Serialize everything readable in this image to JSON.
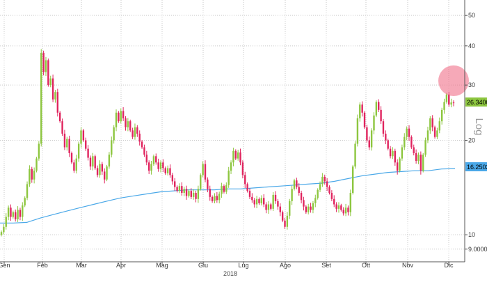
{
  "chart_data": {
    "type": "candlestick",
    "scale": "log",
    "ylim": [
      8.2,
      56
    ],
    "y_ticks": [
      {
        "value": 50,
        "label": "50"
      },
      {
        "value": 40,
        "label": "40"
      },
      {
        "value": 30,
        "label": "30"
      },
      {
        "value": 20,
        "label": "20"
      },
      {
        "value": 10,
        "label": "10"
      },
      {
        "value": 9,
        "label": "9.0000"
      }
    ],
    "x_ticks": [
      "Gen",
      "Feb",
      "Mar",
      "Apr",
      "Mag",
      "Giu",
      "Lug",
      "Ago",
      "Set",
      "Ott",
      "Nov",
      "Dic"
    ],
    "year_label": "2018",
    "axis_label": "Log",
    "grid": true,
    "last_price": {
      "value": 26.34,
      "label": "26.3400",
      "color": "#8dc63f"
    },
    "moving_average": {
      "label": "16.2502",
      "color": "#4aa8e8",
      "points": [
        10.9,
        10.9,
        10.95,
        11.3,
        11.6,
        11.9,
        12.2,
        12.5,
        12.8,
        13.1,
        13.3,
        13.5,
        13.7,
        13.8,
        13.9,
        13.9,
        13.9,
        14.0,
        14.0,
        14.1,
        14.2,
        14.3,
        14.4,
        14.5,
        14.6,
        14.8,
        15.1,
        15.4,
        15.6,
        15.8,
        15.9,
        16.0,
        16.0,
        16.2,
        16.25
      ]
    },
    "up_color": "#8dc63f",
    "down_color": "#e0245e",
    "highlight_color": "#f07089",
    "points": [
      [
        10.0,
        10.2
      ],
      [
        10.2,
        10.6
      ],
      [
        10.6,
        11.4
      ],
      [
        11.4,
        12.2
      ],
      [
        12.2,
        11.4
      ],
      [
        11.4,
        11.8
      ],
      [
        11.8,
        11.2
      ],
      [
        11.2,
        12.0
      ],
      [
        12.0,
        11.4
      ],
      [
        11.4,
        12.4
      ],
      [
        12.4,
        13.1
      ],
      [
        13.1,
        14.5
      ],
      [
        14.5,
        16.2
      ],
      [
        16.2,
        15.0
      ],
      [
        15.0,
        16.0
      ],
      [
        16.0,
        17.5
      ],
      [
        17.5,
        19.5
      ],
      [
        19.5,
        38.0
      ],
      [
        38.0,
        33.0
      ],
      [
        33.0,
        36.0
      ],
      [
        36.0,
        30.0
      ],
      [
        30.0,
        31.5
      ],
      [
        31.5,
        27.0
      ],
      [
        27.0,
        28.5
      ],
      [
        28.5,
        24.5
      ],
      [
        24.5,
        23.0
      ],
      [
        23.0,
        21.0
      ],
      [
        21.0,
        19.0
      ],
      [
        19.0,
        20.2
      ],
      [
        20.2,
        18.2
      ],
      [
        18.2,
        17.0
      ],
      [
        17.0,
        16.0
      ],
      [
        16.0,
        17.5
      ],
      [
        17.5,
        19.5
      ],
      [
        19.5,
        21.5
      ],
      [
        21.5,
        20.0
      ],
      [
        20.0,
        18.8
      ],
      [
        18.8,
        17.6
      ],
      [
        17.6,
        16.5
      ],
      [
        16.5,
        17.8
      ],
      [
        17.8,
        16.3
      ],
      [
        16.3,
        15.5
      ],
      [
        15.5,
        16.8
      ],
      [
        16.8,
        15.9
      ],
      [
        15.9,
        15.0
      ],
      [
        15.0,
        16.5
      ],
      [
        16.5,
        18.0
      ],
      [
        18.0,
        20.0
      ],
      [
        20.0,
        22.0
      ],
      [
        22.0,
        24.5
      ],
      [
        24.5,
        23.0
      ],
      [
        23.0,
        24.8
      ],
      [
        24.8,
        23.5
      ],
      [
        23.5,
        22.0
      ],
      [
        22.0,
        23.0
      ],
      [
        23.0,
        21.5
      ],
      [
        21.5,
        20.5
      ],
      [
        20.5,
        22.0
      ],
      [
        22.0,
        21.0
      ],
      [
        21.0,
        19.8
      ],
      [
        19.8,
        19.0
      ],
      [
        19.0,
        18.0
      ],
      [
        18.0,
        17.0
      ],
      [
        17.0,
        16.0
      ],
      [
        16.0,
        16.8
      ],
      [
        16.8,
        17.8
      ],
      [
        17.8,
        17.0
      ],
      [
        17.0,
        16.2
      ],
      [
        16.2,
        17.0
      ],
      [
        17.0,
        16.3
      ],
      [
        16.3,
        15.7
      ],
      [
        15.7,
        16.3
      ],
      [
        16.3,
        15.5
      ],
      [
        15.5,
        14.8
      ],
      [
        14.8,
        14.2
      ],
      [
        14.2,
        13.8
      ],
      [
        13.8,
        14.3
      ],
      [
        14.3,
        13.6
      ],
      [
        13.6,
        14.0
      ],
      [
        14.0,
        13.3
      ],
      [
        13.3,
        13.8
      ],
      [
        13.8,
        13.2
      ],
      [
        13.2,
        13.6
      ],
      [
        13.6,
        13.0
      ],
      [
        13.0,
        14.0
      ],
      [
        14.0,
        15.5
      ],
      [
        15.5,
        16.8
      ],
      [
        16.8,
        15.0
      ],
      [
        15.0,
        14.0
      ],
      [
        14.0,
        13.2
      ],
      [
        13.2,
        12.8
      ],
      [
        12.8,
        13.3
      ],
      [
        13.3,
        12.9
      ],
      [
        12.9,
        13.5
      ],
      [
        13.5,
        14.3
      ],
      [
        14.3,
        13.7
      ],
      [
        13.7,
        14.4
      ],
      [
        14.4,
        16.0
      ],
      [
        16.0,
        17.0
      ],
      [
        17.0,
        18.5
      ],
      [
        18.5,
        17.5
      ],
      [
        17.5,
        18.3
      ],
      [
        18.3,
        17.0
      ],
      [
        17.0,
        15.5
      ],
      [
        15.5,
        14.5
      ],
      [
        14.5,
        13.8
      ],
      [
        13.8,
        13.2
      ],
      [
        13.2,
        12.9
      ],
      [
        12.9,
        12.5
      ],
      [
        12.5,
        13.0
      ],
      [
        13.0,
        12.6
      ],
      [
        12.6,
        13.1
      ],
      [
        13.1,
        12.5
      ],
      [
        12.5,
        12.0
      ],
      [
        12.0,
        12.5
      ],
      [
        12.5,
        12.1
      ],
      [
        12.1,
        13.4
      ],
      [
        13.4,
        12.8
      ],
      [
        12.8,
        12.3
      ],
      [
        12.3,
        11.8
      ],
      [
        11.8,
        11.1
      ],
      [
        11.1,
        10.6
      ],
      [
        10.6,
        11.5
      ],
      [
        11.5,
        12.8
      ],
      [
        12.8,
        14.0
      ],
      [
        14.0,
        14.9
      ],
      [
        14.9,
        14.2
      ],
      [
        14.2,
        13.6
      ],
      [
        13.6,
        12.9
      ],
      [
        12.9,
        12.3
      ],
      [
        12.3,
        11.8
      ],
      [
        11.8,
        12.3
      ],
      [
        12.3,
        12.0
      ],
      [
        12.0,
        12.6
      ],
      [
        12.6,
        13.1
      ],
      [
        13.1,
        13.9
      ],
      [
        13.9,
        14.5
      ],
      [
        14.5,
        15.3
      ],
      [
        15.3,
        14.8
      ],
      [
        14.8,
        14.2
      ],
      [
        14.2,
        13.6
      ],
      [
        13.6,
        13.0
      ],
      [
        13.0,
        12.5
      ],
      [
        12.5,
        12.1
      ],
      [
        12.1,
        12.4
      ],
      [
        12.4,
        12.0
      ],
      [
        12.0,
        11.7
      ],
      [
        11.7,
        12.2
      ],
      [
        12.2,
        11.8
      ],
      [
        11.8,
        13.6
      ],
      [
        13.6,
        16.5
      ],
      [
        16.5,
        19.5
      ],
      [
        19.5,
        23.5
      ],
      [
        23.5,
        26.0
      ],
      [
        26.0,
        24.5
      ],
      [
        24.5,
        22.0
      ],
      [
        22.0,
        20.0
      ],
      [
        20.0,
        19.0
      ],
      [
        19.0,
        21.5
      ],
      [
        21.5,
        24.0
      ],
      [
        24.0,
        26.5
      ],
      [
        26.5,
        25.0
      ],
      [
        25.0,
        23.0
      ],
      [
        23.0,
        21.0
      ],
      [
        21.0,
        20.0
      ],
      [
        20.0,
        18.8
      ],
      [
        18.8,
        17.8
      ],
      [
        17.8,
        18.5
      ],
      [
        18.5,
        17.0
      ],
      [
        17.0,
        16.0
      ],
      [
        16.0,
        17.5
      ],
      [
        17.5,
        19.0
      ],
      [
        19.0,
        20.5
      ],
      [
        20.5,
        21.8
      ],
      [
        21.8,
        20.5
      ],
      [
        20.5,
        19.0
      ],
      [
        19.0,
        18.2
      ],
      [
        18.2,
        17.2
      ],
      [
        17.2,
        18.0
      ],
      [
        18.0,
        16.0
      ],
      [
        16.0,
        18.0
      ],
      [
        18.0,
        20.0
      ],
      [
        20.0,
        21.5
      ],
      [
        21.5,
        23.5
      ],
      [
        23.5,
        22.0
      ],
      [
        22.0,
        20.5
      ],
      [
        20.5,
        21.5
      ],
      [
        21.5,
        23.0
      ],
      [
        23.0,
        25.0
      ],
      [
        25.0,
        26.5
      ],
      [
        26.5,
        28.0
      ],
      [
        28.0,
        26.0
      ],
      [
        26.0,
        26.4
      ],
      [
        26.4,
        26.3
      ]
    ]
  }
}
